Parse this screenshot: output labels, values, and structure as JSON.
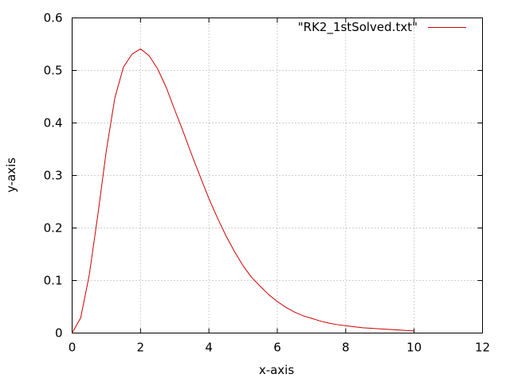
{
  "chart_data": {
    "type": "line",
    "title": "",
    "xlabel": "x-axis",
    "ylabel": "y-axis",
    "xlim": [
      0,
      12
    ],
    "ylim": [
      0,
      0.6
    ],
    "xticks": [
      0,
      2,
      4,
      6,
      8,
      10,
      12
    ],
    "yticks": [
      0,
      0.1,
      0.2,
      0.3,
      0.4,
      0.5,
      0.6
    ],
    "xtick_labels": [
      "0",
      "2",
      "4",
      "6",
      "8",
      "10",
      "12"
    ],
    "ytick_labels": [
      "0",
      "0.1",
      "0.2",
      "0.3",
      "0.4",
      "0.5",
      "0.6"
    ],
    "grid": true,
    "legend_position": "top-right",
    "series": [
      {
        "name": "\"RK2_1stSolved.txt\"",
        "color": "#cc0000",
        "x": [
          0,
          0.25,
          0.5,
          0.75,
          1.0,
          1.25,
          1.5,
          1.75,
          2.0,
          2.25,
          2.5,
          2.75,
          3.0,
          3.25,
          3.5,
          3.75,
          4.0,
          4.25,
          4.5,
          4.75,
          5.0,
          5.25,
          5.5,
          5.75,
          6.0,
          6.25,
          6.5,
          6.75,
          7.0,
          7.25,
          7.5,
          7.75,
          8.0,
          8.25,
          8.5,
          8.75,
          9.0,
          9.25,
          9.5,
          9.75,
          10.0
        ],
        "y": [
          0,
          0.029,
          0.11,
          0.224,
          0.347,
          0.448,
          0.506,
          0.531,
          0.541,
          0.528,
          0.503,
          0.468,
          0.425,
          0.383,
          0.339,
          0.297,
          0.256,
          0.219,
          0.185,
          0.155,
          0.128,
          0.106,
          0.089,
          0.073,
          0.06,
          0.049,
          0.04,
          0.033,
          0.028,
          0.023,
          0.019,
          0.016,
          0.014,
          0.012,
          0.01,
          0.009,
          0.008,
          0.007,
          0.006,
          0.005,
          0.004
        ]
      }
    ]
  }
}
